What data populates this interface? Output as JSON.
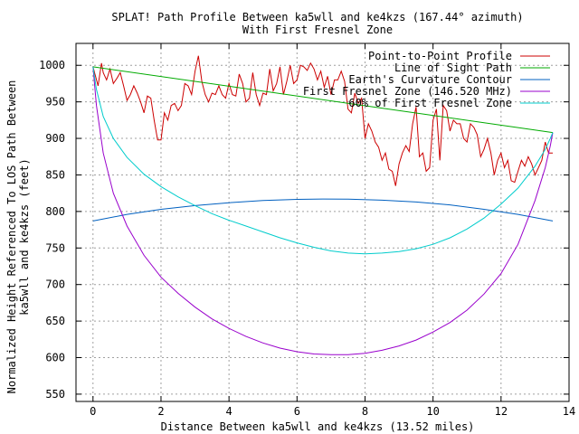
{
  "chart_data": {
    "type": "line",
    "title": "SPLAT! Path Profile Between ka5wll and ke4kzs (167.44° azimuth)",
    "subtitle": "With First Fresnel Zone",
    "xlabel": "Distance Between ka5wll and ke4kzs (13.52 miles)",
    "ylabel_line1": "Normalized Height Referenced To LOS Path Between",
    "ylabel_line2": "ka5wll and ke4kzs (feet)",
    "xlim": [
      -0.5,
      14
    ],
    "ylim": [
      540,
      1030
    ],
    "x_ticks": [
      0,
      2,
      4,
      6,
      8,
      10,
      12,
      14
    ],
    "y_ticks": [
      550,
      600,
      650,
      700,
      750,
      800,
      850,
      900,
      950,
      1000
    ],
    "grid": true,
    "legend_position": "top-right",
    "series": [
      {
        "name": "Point-to-Point Profile",
        "color": "#cc0000",
        "x": [
          0,
          0.15,
          0.25,
          0.3,
          0.4,
          0.5,
          0.6,
          0.7,
          0.8,
          0.9,
          1.0,
          1.1,
          1.2,
          1.3,
          1.4,
          1.5,
          1.6,
          1.7,
          1.8,
          1.9,
          2.0,
          2.1,
          2.2,
          2.3,
          2.4,
          2.5,
          2.6,
          2.7,
          2.8,
          2.9,
          3.0,
          3.1,
          3.2,
          3.3,
          3.4,
          3.5,
          3.6,
          3.7,
          3.8,
          3.9,
          4.0,
          4.1,
          4.2,
          4.3,
          4.4,
          4.5,
          4.6,
          4.7,
          4.8,
          4.9,
          5.0,
          5.1,
          5.2,
          5.3,
          5.4,
          5.5,
          5.6,
          5.7,
          5.8,
          5.9,
          6.0,
          6.1,
          6.2,
          6.3,
          6.4,
          6.5,
          6.6,
          6.7,
          6.8,
          6.9,
          7.0,
          7.1,
          7.2,
          7.3,
          7.4,
          7.5,
          7.6,
          7.7,
          7.8,
          7.9,
          8.0,
          8.1,
          8.2,
          8.3,
          8.4,
          8.5,
          8.6,
          8.7,
          8.8,
          8.9,
          9.0,
          9.1,
          9.2,
          9.3,
          9.4,
          9.5,
          9.6,
          9.7,
          9.8,
          9.9,
          10.0,
          10.1,
          10.2,
          10.3,
          10.4,
          10.5,
          10.6,
          10.7,
          10.8,
          10.9,
          11.0,
          11.1,
          11.2,
          11.3,
          11.4,
          11.5,
          11.6,
          11.7,
          11.8,
          11.9,
          12.0,
          12.1,
          12.2,
          12.3,
          12.4,
          12.5,
          12.6,
          12.7,
          12.8,
          12.9,
          13.0,
          13.1,
          13.2,
          13.3,
          13.4,
          13.52
        ],
        "values": [
          998,
          972,
          1003,
          990,
          980,
          995,
          975,
          982,
          990,
          972,
          952,
          960,
          972,
          962,
          950,
          935,
          958,
          955,
          925,
          898,
          898,
          935,
          925,
          945,
          948,
          938,
          945,
          975,
          972,
          960,
          992,
          1013,
          978,
          960,
          950,
          962,
          960,
          972,
          960,
          955,
          975,
          960,
          958,
          988,
          975,
          950,
          955,
          990,
          960,
          945,
          962,
          960,
          995,
          965,
          975,
          998,
          960,
          978,
          1000,
          975,
          980,
          1000,
          998,
          993,
          1003,
          995,
          980,
          992,
          970,
          985,
          960,
          980,
          980,
          992,
          978,
          940,
          935,
          962,
          948,
          955,
          900,
          920,
          910,
          895,
          888,
          870,
          880,
          858,
          855,
          835,
          865,
          880,
          890,
          882,
          920,
          943,
          875,
          880,
          855,
          860,
          925,
          940,
          870,
          945,
          938,
          910,
          925,
          920,
          920,
          900,
          895,
          920,
          915,
          905,
          875,
          885,
          900,
          880,
          850,
          870,
          880,
          860,
          870,
          842,
          840,
          855,
          870,
          862,
          875,
          865,
          850,
          860,
          870,
          895,
          880,
          880
        ]
      },
      {
        "name": "Line of Sight Path",
        "color": "#00aa00",
        "x": [
          0,
          13.52
        ],
        "values": [
          998,
          908
        ]
      },
      {
        "name": "Earth's Curvature Contour",
        "color": "#0060c0",
        "x": [
          0,
          1,
          2,
          3,
          4,
          5,
          6,
          6.76,
          7.5,
          8.5,
          9.5,
          10.5,
          11.5,
          12.5,
          13.52
        ],
        "values": [
          787,
          796,
          803,
          808,
          812,
          815,
          816.5,
          817,
          816.8,
          815.5,
          813,
          809,
          803,
          796,
          787
        ]
      },
      {
        "name": "First Fresnel Zone (146.520 MHz)",
        "color": "#9900cc",
        "x": [
          0,
          0.1,
          0.3,
          0.6,
          1,
          1.5,
          2,
          2.5,
          3,
          3.5,
          4,
          4.5,
          5,
          5.5,
          6,
          6.5,
          7,
          7.5,
          8,
          8.5,
          9,
          9.5,
          10,
          10.5,
          11,
          11.5,
          12,
          12.5,
          13,
          13.3,
          13.45,
          13.52
        ],
        "values": [
          998,
          945,
          880,
          825,
          780,
          740,
          710,
          688,
          669,
          653,
          640,
          629,
          620,
          613,
          608,
          605,
          604,
          604,
          606,
          610,
          616,
          624,
          635,
          648,
          665,
          687,
          715,
          755,
          815,
          860,
          890,
          908
        ]
      },
      {
        "name": "60% of First Fresnel Zone",
        "color": "#00cccc",
        "x": [
          0,
          0.1,
          0.3,
          0.6,
          1,
          1.5,
          2,
          2.5,
          3,
          3.5,
          4,
          4.5,
          5,
          5.5,
          6,
          6.5,
          7,
          7.5,
          8,
          8.5,
          9,
          9.5,
          10,
          10.5,
          11,
          11.5,
          12,
          12.5,
          13,
          13.3,
          13.45,
          13.52
        ],
        "values": [
          998,
          967,
          930,
          900,
          874,
          851,
          834,
          820,
          808,
          797,
          788,
          780,
          772,
          764,
          757,
          751,
          746,
          743,
          742,
          743,
          745,
          749,
          755,
          764,
          776,
          791,
          810,
          832,
          862,
          885,
          900,
          908
        ]
      }
    ]
  }
}
